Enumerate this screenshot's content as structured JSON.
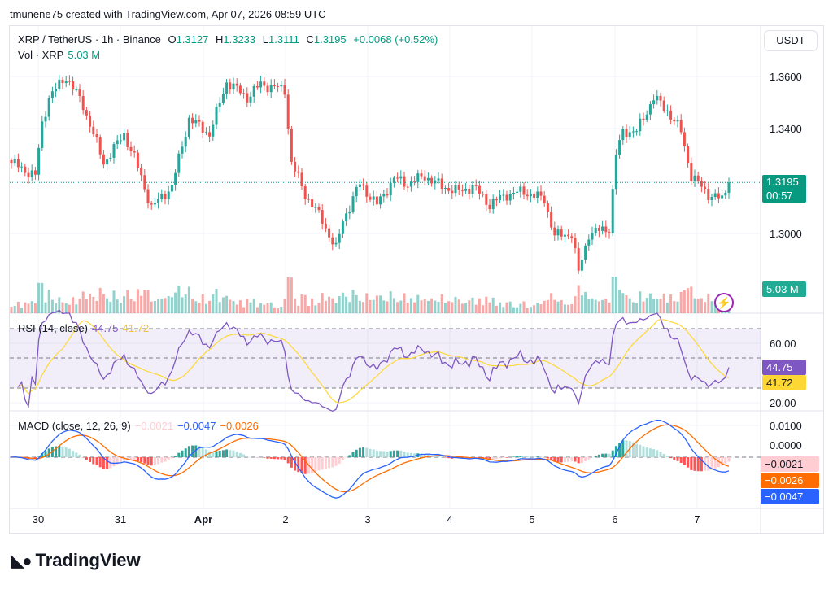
{
  "caption": "tmunene75 created with TradingView.com, Apr 07, 2026 08:59 UTC",
  "header": {
    "symbol": "XRP / TetherUS · 1h · Binance",
    "o_label": "O",
    "o": "1.3127",
    "h_label": "H",
    "h": "1.3233",
    "l_label": "L",
    "l": "1.3111",
    "c_label": "C",
    "c": "1.3195",
    "change": "+0.0068 (+0.52%)",
    "vol_label": "Vol · XRP",
    "vol": "5.03 M"
  },
  "currency_button": "USDT",
  "price_axis": [
    "1.3600",
    "1.3400",
    "1.3000"
  ],
  "last_price": "1.3195",
  "countdown": "00:57",
  "vol_tag": "5.03 M",
  "rsi": {
    "title": "RSI (14, close)",
    "value": "44.75",
    "ma": "41.72",
    "axis": [
      "60.00",
      "20.00"
    ]
  },
  "macd": {
    "title": "MACD (close, 12, 26, 9)",
    "hist": "−0.0021",
    "macd": "−0.0047",
    "signal": "−0.0026",
    "axis": [
      "0.0100",
      "0.0000"
    ]
  },
  "time_axis": [
    "30",
    "31",
    "Apr",
    "2",
    "3",
    "4",
    "5",
    "6",
    "7"
  ],
  "logo": "TradingView",
  "colors": {
    "up": "#26a69a",
    "down": "#ef5350",
    "rsi": "#7e57c2",
    "rsi_ma": "#fdd835",
    "macd": "#2962ff",
    "signal": "#ff6d00"
  },
  "chart_data": {
    "type": "candlestick",
    "interval": "1h",
    "ylim": [
      1.28,
      1.37
    ],
    "close_anchors_hour_price": [
      [
        0,
        1.327
      ],
      [
        7,
        1.322
      ],
      [
        9,
        1.342
      ],
      [
        11,
        1.352
      ],
      [
        16,
        1.36
      ],
      [
        21,
        1.349
      ],
      [
        27,
        1.327
      ],
      [
        33,
        1.338
      ],
      [
        36,
        1.329
      ],
      [
        41,
        1.31
      ],
      [
        47,
        1.318
      ],
      [
        52,
        1.344
      ],
      [
        58,
        1.338
      ],
      [
        63,
        1.358
      ],
      [
        69,
        1.352
      ],
      [
        73,
        1.357
      ],
      [
        80,
        1.355
      ],
      [
        82,
        1.327
      ],
      [
        86,
        1.315
      ],
      [
        91,
        1.305
      ],
      [
        95,
        1.294
      ],
      [
        97,
        1.305
      ],
      [
        102,
        1.319
      ],
      [
        107,
        1.311
      ],
      [
        112,
        1.321
      ],
      [
        116,
        1.319
      ],
      [
        121,
        1.322
      ],
      [
        126,
        1.318
      ],
      [
        131,
        1.316
      ],
      [
        135,
        1.318
      ],
      [
        140,
        1.311
      ],
      [
        145,
        1.315
      ],
      [
        150,
        1.316
      ],
      [
        156,
        1.313
      ],
      [
        159,
        1.299
      ],
      [
        164,
        1.3
      ],
      [
        166,
        1.285
      ],
      [
        169,
        1.3
      ],
      [
        175,
        1.302
      ],
      [
        177,
        1.33
      ],
      [
        179,
        1.339
      ],
      [
        183,
        1.339
      ],
      [
        188,
        1.352
      ],
      [
        192,
        1.347
      ],
      [
        196,
        1.339
      ],
      [
        199,
        1.322
      ],
      [
        204,
        1.315
      ],
      [
        208,
        1.313
      ],
      [
        210,
        1.3195
      ]
    ]
  }
}
